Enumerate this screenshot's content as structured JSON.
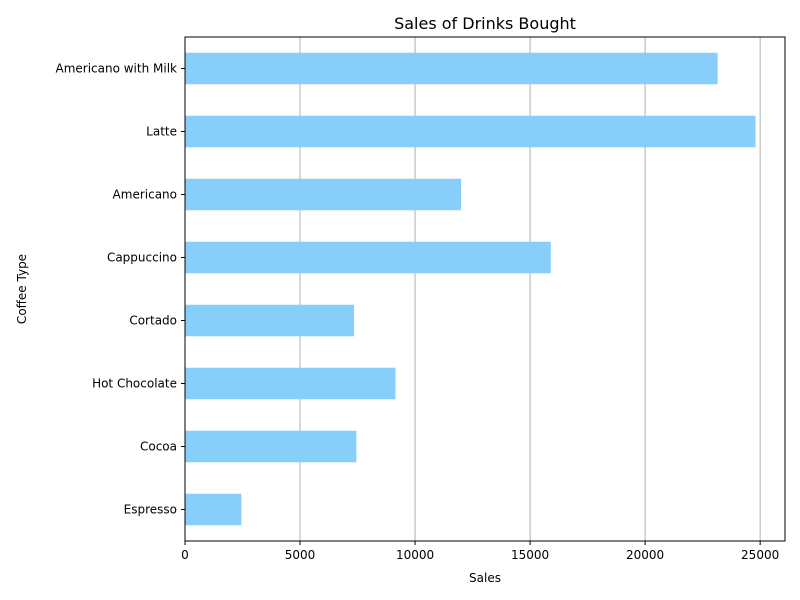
{
  "chart_data": {
    "type": "bar",
    "orientation": "horizontal",
    "title": "Sales of Drinks Bought",
    "xlabel": "Sales",
    "ylabel": "Coffee Type",
    "categories": [
      "Americano with Milk",
      "Latte",
      "Americano",
      "Cappuccino",
      "Cortado",
      "Hot Chocolate",
      "Cocoa",
      "Espresso"
    ],
    "values": [
      23150,
      24800,
      12000,
      15900,
      7350,
      9150,
      7450,
      2450
    ],
    "xlim": [
      0,
      26080
    ],
    "xticks": [
      0,
      5000,
      10000,
      15000,
      20000,
      25000
    ],
    "grid": "vertical",
    "bar_color": "#87cefa"
  }
}
